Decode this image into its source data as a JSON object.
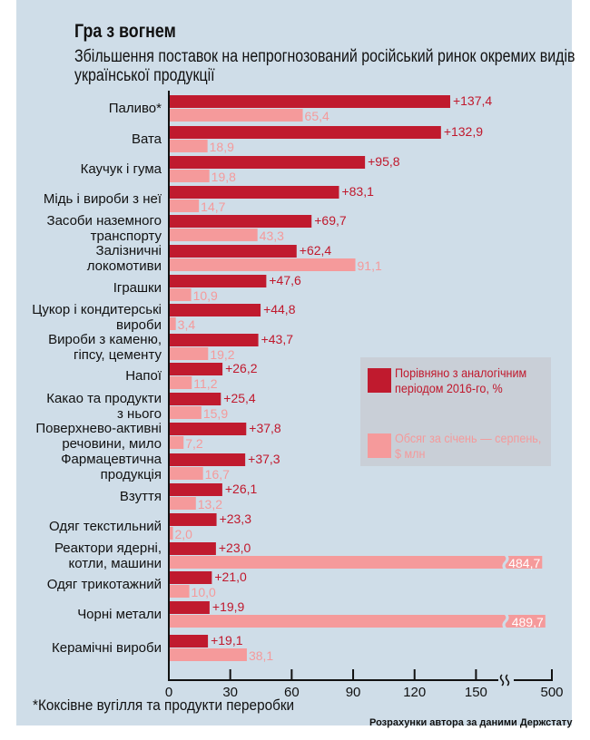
{
  "colors": {
    "change": "#c01a2e",
    "volume": "#f59a9b"
  },
  "chart_data": {
    "type": "bar",
    "title": "Гра з вогнем",
    "subtitle": "Збільшення поставок на непрогнозований російський ринок окремих видів української продукції",
    "categories": [
      "Паливо*",
      "Вата",
      "Каучук і гума",
      "Мідь і вироби з неї",
      "Засоби наземного|транспорту",
      "Залізничні|локомотиви",
      "Іграшки",
      "Цукор і кондитерські|вироби",
      "Вироби з каменю,|гіпсу, цементу",
      "Напої",
      "Какао та продукти|з нього",
      "Поверхнево-активні|речовини, мило",
      "Фармацевтична|продукція",
      "Взуття",
      "Одяг текстильний",
      "Реактори ядерні,|котли, машини",
      "Одяг трикотажний",
      "Чорні метали",
      "Керамічні вироби"
    ],
    "series": [
      {
        "name": "Порівняно з аналогічним періодом 2016-го, %",
        "labels": [
          "+137,4",
          "+132,9",
          "+95,8",
          "+83,1",
          "+69,7",
          "+62,4",
          "+47,6",
          "+44,8",
          "+43,7",
          "+26,2",
          "+25,4",
          "+37,8",
          "+37,3",
          "+26,1",
          "+23,3",
          "+23,0",
          "+21,0",
          "+19,9",
          "+19,1"
        ],
        "values": [
          137.4,
          132.9,
          95.8,
          83.1,
          69.7,
          62.4,
          47.6,
          44.8,
          43.7,
          26.2,
          25.4,
          37.8,
          37.3,
          26.1,
          23.3,
          23.0,
          21.0,
          19.9,
          19.1
        ]
      },
      {
        "name": "Обсяг за січень — серпень, $ млн",
        "labels": [
          "65,4",
          "18,9",
          "19,8",
          "14,7",
          "43,3",
          "91,1",
          "10,9",
          "3,4",
          "19,2",
          "11,2",
          "15,9",
          "7,2",
          "16,7",
          "13,2",
          "2,0",
          "484,7",
          "10,0",
          "489,7",
          "38,1"
        ],
        "values": [
          65.4,
          18.9,
          19.8,
          14.7,
          43.3,
          91.1,
          10.9,
          3.4,
          19.2,
          11.2,
          15.9,
          7.2,
          16.7,
          13.2,
          2.0,
          484.7,
          10.0,
          489.7,
          38.1
        ]
      }
    ],
    "xticks": [
      "0",
      "30",
      "60",
      "90",
      "120",
      "150",
      "500"
    ],
    "xtick_values": [
      0,
      30,
      60,
      90,
      120,
      150,
      500
    ],
    "axis_break": true,
    "legend": {
      "series1": "Порівняно з аналогічним періодом 2016-го, %",
      "series2": "Обсяг за січень — серпень, $ млн"
    }
  },
  "footnote": "*Коксівне вугілля та продукти переробки",
  "source": "Розрахунки автора за даними Держстату"
}
